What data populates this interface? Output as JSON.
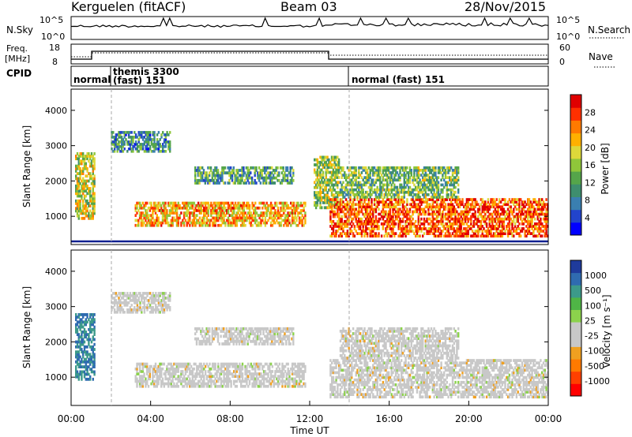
{
  "header": {
    "station": "Kerguelen (fitACF)",
    "beam": "Beam 03",
    "date": "28/Nov/2015"
  },
  "nsky_panel": {
    "left_label": "N.Sky",
    "right_label": "N.Search",
    "left_ticks": [
      "10^5",
      "10^0"
    ],
    "right_ticks": [
      "10^5",
      "10^0"
    ]
  },
  "freq_panel": {
    "left_label_1": "Freq.",
    "left_label_2": "[MHz]",
    "right_label": "Nave",
    "left_ticks": [
      "18",
      "8"
    ],
    "right_ticks": [
      "60",
      "0"
    ]
  },
  "cpid_panel": {
    "label": "CPID",
    "modes": [
      {
        "text": "normal"
      },
      {
        "text": "themis 3300"
      },
      {
        "text": "(fast) 151"
      },
      {
        "text": "normal (fast) 151"
      }
    ]
  },
  "power_colorbar": {
    "label": "Power [dB]",
    "ticks": [
      "28",
      "24",
      "20",
      "16",
      "12",
      "8",
      "4"
    ],
    "colors": [
      "#0000ff",
      "#2244cc",
      "#3a7fb0",
      "#3e8e6e",
      "#55a54a",
      "#8fc63a",
      "#ddd83a",
      "#ffb000",
      "#ff7a00",
      "#ff3000",
      "#e00000"
    ]
  },
  "velocity_colorbar": {
    "label": "Velocity [m s⁻¹]",
    "ticks": [
      "1000",
      "500",
      "100",
      "25",
      "-25",
      "-100",
      "-500",
      "-1000"
    ],
    "colors": [
      "#1f3b9c",
      "#2f6bb0",
      "#3c9a8a",
      "#4fb546",
      "#8cd24c",
      "#c8c8c8",
      "#c8c8c8",
      "#f0a020",
      "#ff7a00",
      "#ff4000",
      "#ff0000"
    ]
  },
  "chart_data": [
    {
      "type": "heatmap",
      "quantity": "Power [dB]",
      "ylabel": "Slant Range [km]",
      "ylim": [
        200,
        4600
      ],
      "yticks": [
        "1000",
        "2000",
        "3000",
        "4000"
      ],
      "xlim_hours": [
        0,
        24
      ],
      "regions": [
        {
          "t": [
            0.2,
            1.2
          ],
          "r": [
            900,
            2800
          ],
          "mid_db": 16
        },
        {
          "t": [
            2.0,
            5.0
          ],
          "r": [
            2800,
            3400
          ],
          "mid_db": 8
        },
        {
          "t": [
            3.2,
            11.8
          ],
          "r": [
            700,
            1400
          ],
          "mid_db": 20
        },
        {
          "t": [
            6.2,
            11.2
          ],
          "r": [
            1900,
            2400
          ],
          "mid_db": 10
        },
        {
          "t": [
            12.2,
            13.5
          ],
          "r": [
            1200,
            2700
          ],
          "mid_db": 14
        },
        {
          "t": [
            13.0,
            24.0
          ],
          "r": [
            400,
            1500
          ],
          "mid_db": 24
        },
        {
          "t": [
            13.5,
            19.5
          ],
          "r": [
            1500,
            2400
          ],
          "mid_db": 12
        }
      ]
    },
    {
      "type": "heatmap",
      "quantity": "Velocity [m s⁻¹]",
      "ylabel": "Slant Range [km]",
      "ylim": [
        200,
        4600
      ],
      "yticks": [
        "1000",
        "2000",
        "3000",
        "4000"
      ],
      "xlim_hours": [
        0,
        24
      ],
      "regions": [
        {
          "t": [
            0.2,
            1.2
          ],
          "r": [
            900,
            2800
          ],
          "mid_v": 700
        },
        {
          "t": [
            2.0,
            5.0
          ],
          "r": [
            2800,
            3400
          ],
          "mid_v": 0
        },
        {
          "t": [
            3.2,
            11.8
          ],
          "r": [
            700,
            1400
          ],
          "mid_v": 0
        },
        {
          "t": [
            6.2,
            11.2
          ],
          "r": [
            1900,
            2400
          ],
          "mid_v": 0
        },
        {
          "t": [
            13.0,
            24.0
          ],
          "r": [
            400,
            1500
          ],
          "mid_v": 0
        },
        {
          "t": [
            13.5,
            19.5
          ],
          "r": [
            1500,
            2400
          ],
          "mid_v": 0
        }
      ]
    }
  ],
  "x_axis": {
    "ticks": [
      "00:00",
      "04:00",
      "08:00",
      "12:00",
      "16:00",
      "20:00",
      "00:00"
    ],
    "label": "Time UT"
  }
}
